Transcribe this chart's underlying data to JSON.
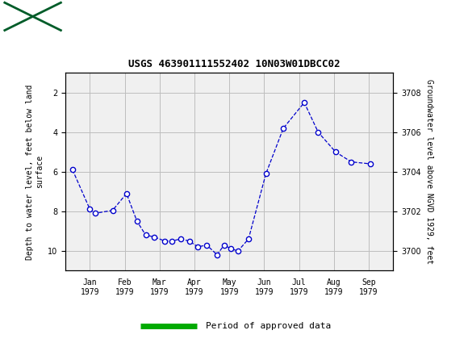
{
  "title": "USGS 463901111552402 10N03W01DBCC02",
  "left_ylabel": "Depth to water level, feet below land\nsurface",
  "right_ylabel": "Groundwater level above NGVD 1929, feet",
  "xlabel_months": [
    "Jan\n1979",
    "Feb\n1979",
    "Mar\n1979",
    "Apr\n1979",
    "May\n1979",
    "Jun\n1979",
    "Jul\n1979",
    "Aug\n1979",
    "Sep\n1979"
  ],
  "month_positions": [
    1,
    2,
    3,
    4,
    5,
    6,
    7,
    8,
    9
  ],
  "left_ylim": [
    11.0,
    1.0
  ],
  "left_yticks": [
    2.0,
    4.0,
    6.0,
    8.0,
    10.0
  ],
  "right_yticks": [
    3700.0,
    3702.0,
    3704.0,
    3706.0,
    3708.0
  ],
  "xlim": [
    0.3,
    9.7
  ],
  "data_x": [
    0.5,
    1.0,
    1.15,
    1.65,
    2.05,
    2.35,
    2.6,
    2.85,
    3.15,
    3.35,
    3.6,
    3.85,
    4.1,
    4.35,
    4.65,
    4.85,
    5.05,
    5.25,
    5.55,
    6.05,
    6.55,
    7.15,
    7.55,
    8.05,
    8.5,
    9.05
  ],
  "data_y_depth": [
    5.9,
    7.9,
    8.1,
    7.95,
    7.1,
    8.5,
    9.2,
    9.3,
    9.5,
    9.5,
    9.4,
    9.5,
    9.8,
    9.7,
    10.2,
    9.7,
    9.9,
    10.0,
    9.4,
    6.1,
    3.8,
    2.5,
    4.0,
    5.0,
    5.5,
    5.6
  ],
  "line_color": "#0000CC",
  "marker_facecolor": "#FFFFFF",
  "marker_edgecolor": "#0000CC",
  "bg_color": "#F0F0F0",
  "header_bg": "#005C29",
  "grid_color": "#BEBEBE",
  "green_bar_color": "#00AA00",
  "legend_text": "Period of approved data",
  "title_fontsize": 9,
  "tick_fontsize": 7,
  "ylabel_fontsize": 7
}
